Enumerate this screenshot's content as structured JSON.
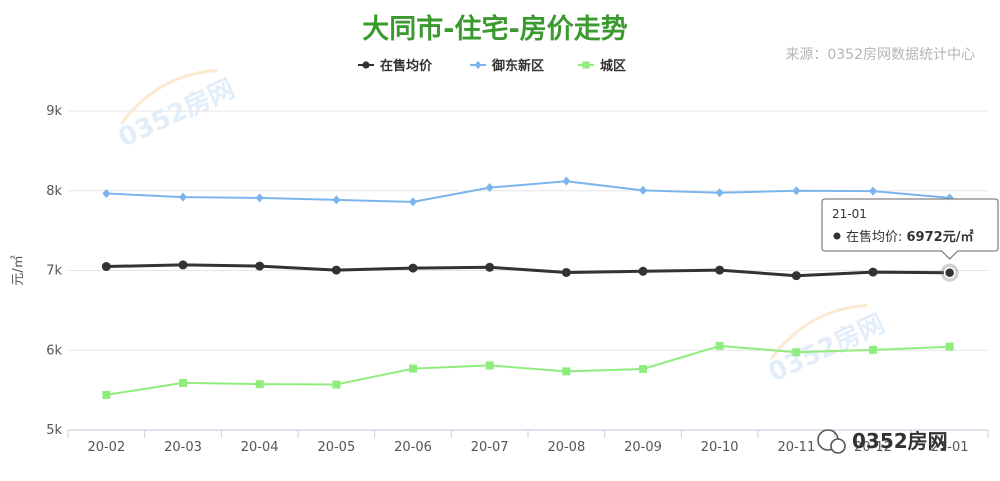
{
  "page": {
    "title": "大同市-住宅-房价走势",
    "source": "来源：0352房网数据统计中心",
    "watermark_text": "0352房网",
    "colors": {
      "title": "#3a9a2e",
      "grid": "#e6e6e6",
      "axis": "#c8d2de",
      "text": "#555555",
      "source": "#b5b5b5"
    }
  },
  "chart_data": {
    "type": "line",
    "title": "大同市-住宅-房价走势",
    "xlabel": "",
    "ylabel": "元/㎡",
    "categories": [
      "20-02",
      "20-03",
      "20-04",
      "20-05",
      "20-06",
      "20-07",
      "20-08",
      "20-09",
      "20-10",
      "20-11",
      "20-12",
      "21-01"
    ],
    "yticks": [
      "5k",
      "6k",
      "7k",
      "8k",
      "9k"
    ],
    "ytick_values": [
      5000,
      6000,
      7000,
      8000,
      9000
    ],
    "ylim": [
      5000,
      9000
    ],
    "grid": true,
    "legend_position": "top-center",
    "series": [
      {
        "name": "在售均价",
        "color": "#333333",
        "marker": "circle",
        "values": [
          7050,
          7070,
          7055,
          7005,
          7030,
          7040,
          6975,
          6990,
          7005,
          6935,
          6980,
          6972
        ]
      },
      {
        "name": "御东新区",
        "color": "#7cb5ec",
        "marker": "diamond",
        "values": [
          7965,
          7920,
          7910,
          7885,
          7860,
          8040,
          8120,
          8005,
          7975,
          8000,
          7995,
          7910
        ]
      },
      {
        "name": "城区",
        "color": "#90ed7d",
        "marker": "square",
        "values": [
          5440,
          5590,
          5575,
          5570,
          5770,
          5810,
          5735,
          5765,
          6055,
          5975,
          6005,
          6045
        ]
      }
    ],
    "tooltip": {
      "category": "21-01",
      "series": "在售均价",
      "label": "在售均价:",
      "value": "6972元/㎡"
    }
  }
}
